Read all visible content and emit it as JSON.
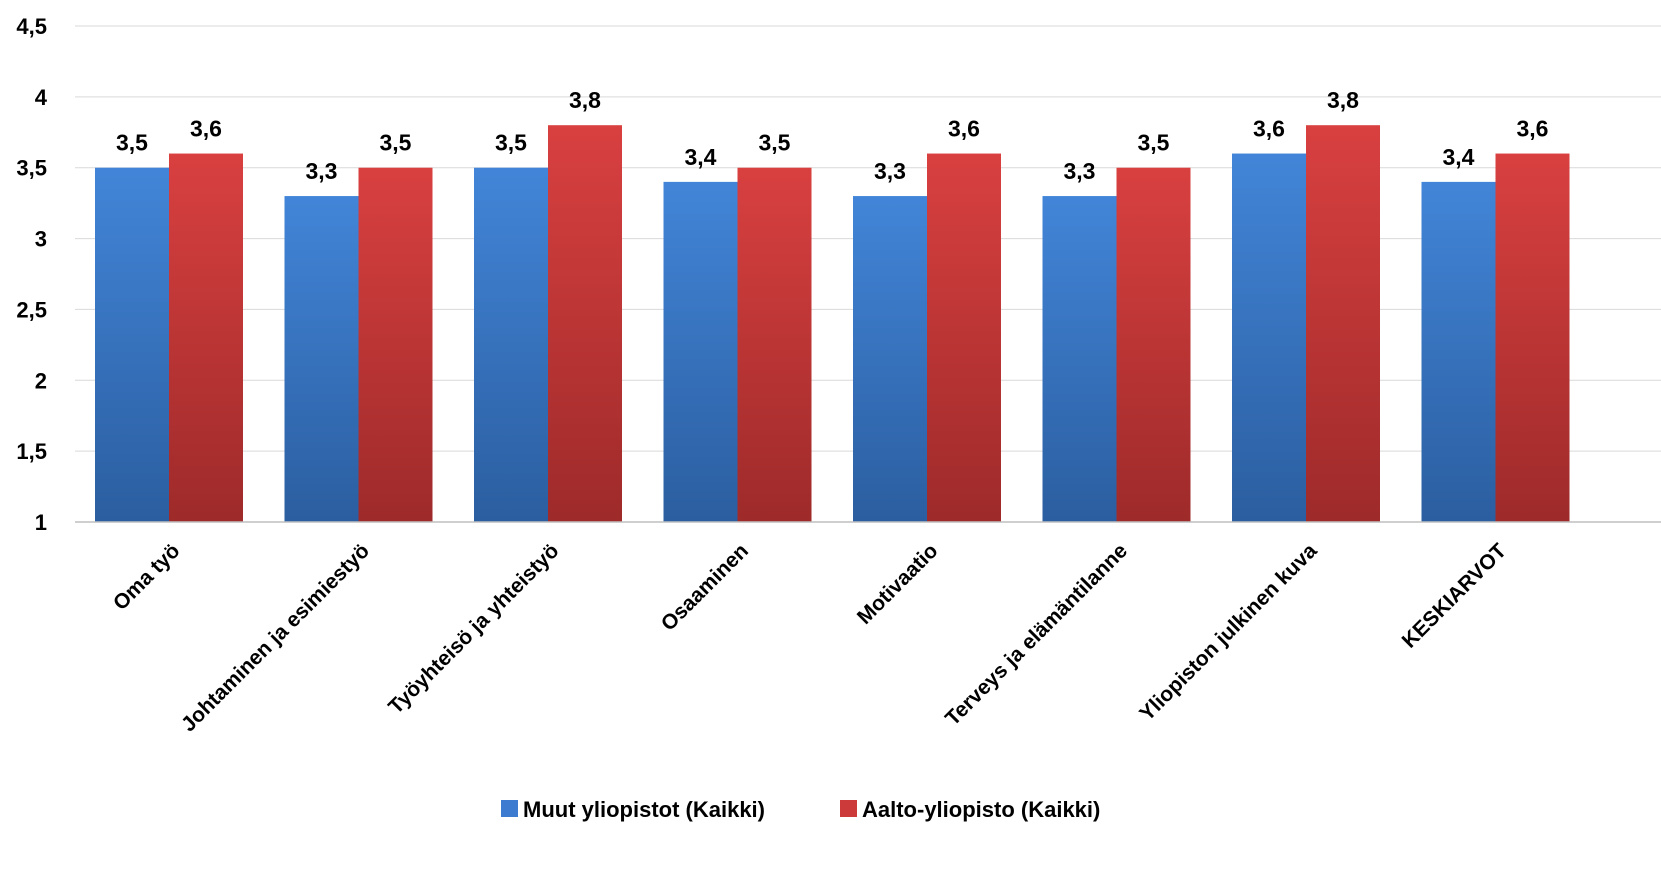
{
  "chart_data": {
    "type": "bar",
    "categories": [
      "Oma työ",
      "Johtaminen ja esimiestyö",
      "Työyhteisö ja yhteistyö",
      "Osaaminen",
      "Motivaatio",
      "Terveys ja elämäntilanne",
      "Yliopiston julkinen kuva",
      "KESKIARVOT"
    ],
    "series": [
      {
        "name": "Muut yliopistot (Kaikki)",
        "values": [
          3.5,
          3.3,
          3.5,
          3.4,
          3.3,
          3.3,
          3.6,
          3.4
        ],
        "color": "#3C7BD0"
      },
      {
        "name": "Aalto-yliopisto (Kaikki)",
        "values": [
          3.6,
          3.5,
          3.8,
          3.5,
          3.6,
          3.5,
          3.8,
          3.6
        ],
        "color": "#CC3A3A"
      }
    ],
    "data_labels": [
      [
        "3,5",
        "3,3",
        "3,5",
        "3,4",
        "3,3",
        "3,3",
        "3,6",
        "3,4"
      ],
      [
        "3,6",
        "3,5",
        "3,8",
        "3,5",
        "3,6",
        "3,5",
        "3,8",
        "3,6"
      ]
    ],
    "yticks": [
      1,
      1.5,
      2,
      2.5,
      3,
      3.5,
      4,
      4.5
    ],
    "ytick_labels": [
      "1",
      "1,5",
      "2",
      "2,5",
      "3",
      "3,5",
      "4",
      "4,5"
    ],
    "ylim": [
      1,
      4.5
    ],
    "grid": true,
    "legend": "bottom",
    "title": "",
    "xlabel": "",
    "ylabel": ""
  }
}
